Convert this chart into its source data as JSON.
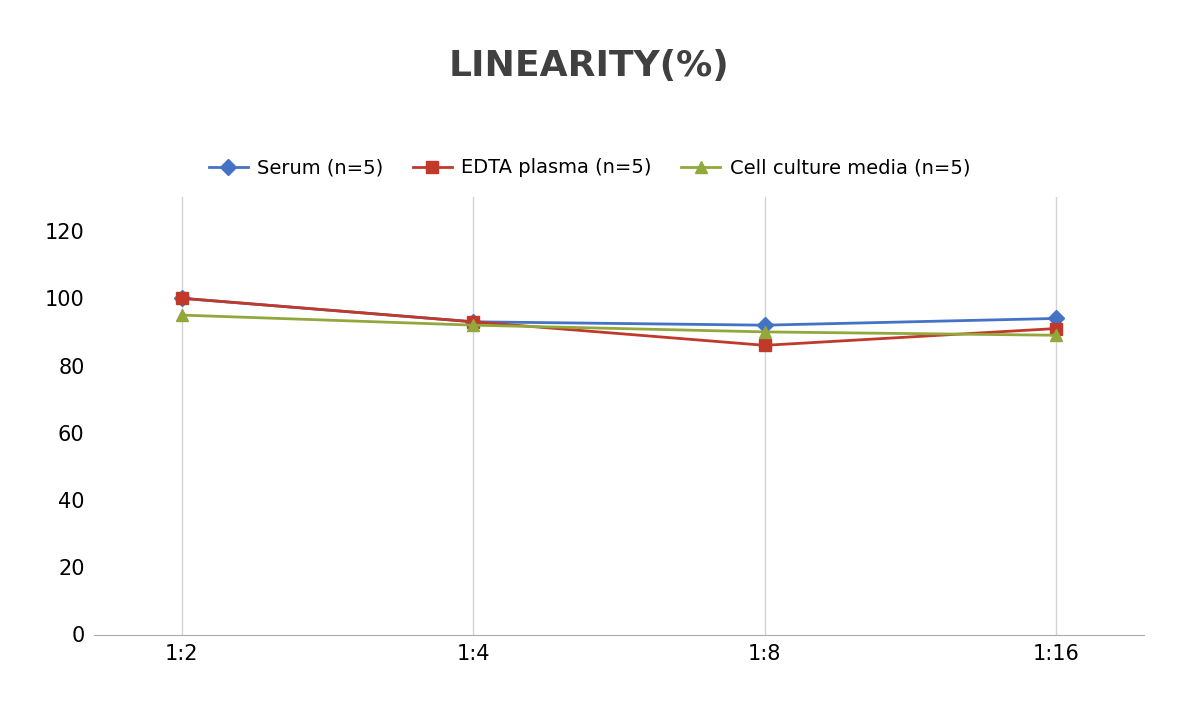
{
  "title": "LINEARITY(%)",
  "x_labels": [
    "1:2",
    "1:4",
    "1:8",
    "1:16"
  ],
  "x_positions": [
    0,
    1,
    2,
    3
  ],
  "series": [
    {
      "label": "Serum (n=5)",
      "values": [
        100,
        93,
        92,
        94
      ],
      "color": "#4472C4",
      "marker": "D",
      "marker_size": 8,
      "linewidth": 2
    },
    {
      "label": "EDTA plasma (n=5)",
      "values": [
        100,
        93,
        86,
        91
      ],
      "color": "#C0392B",
      "marker": "s",
      "marker_size": 8,
      "linewidth": 2
    },
    {
      "label": "Cell culture media (n=5)",
      "values": [
        95,
        92,
        90,
        89
      ],
      "color": "#92A83C",
      "marker": "^",
      "marker_size": 9,
      "linewidth": 2
    }
  ],
  "ylim": [
    0,
    130
  ],
  "yticks": [
    0,
    20,
    40,
    60,
    80,
    100,
    120
  ],
  "background_color": "#FFFFFF",
  "grid_color": "#D3D3D3",
  "title_fontsize": 26,
  "title_color": "#404040",
  "tick_fontsize": 15,
  "legend_fontsize": 14
}
